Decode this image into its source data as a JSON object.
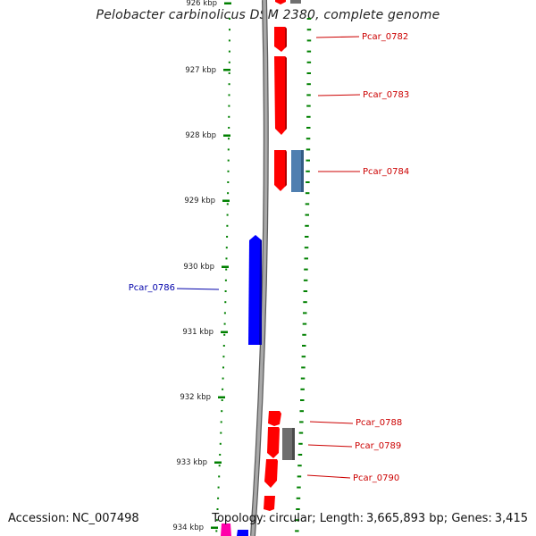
{
  "title": "Pelobacter carbinolicus DSM 2380, complete genome",
  "footer": {
    "accession_label": "Accession:",
    "accession": "NC_007498",
    "topology_label": "Topology:",
    "topology": "circular",
    "length_label": "Length:",
    "length": "3,665,893 bp",
    "genes_label": "Genes:",
    "genes": "3,415"
  },
  "colors": {
    "forward_gene": "#ff0000",
    "reverse_gene": "#0000ff",
    "other_feature_grey": "#808080",
    "other_feature_steelblue": "#4f7fb0",
    "other_feature_magenta": "#ff00aa",
    "tick": "#008000",
    "forward_label": "#cc0000",
    "reverse_label": "#0000aa",
    "backbone": "#8f8f8f"
  },
  "scale_ticks": [
    "926 kbp",
    "927 kbp",
    "928 kbp",
    "929 kbp",
    "930 kbp",
    "931 kbp",
    "932 kbp",
    "933 kbp",
    "934 kbp"
  ],
  "gene_labels": [
    "Pcar_0782",
    "Pcar_0783",
    "Pcar_0784",
    "Pcar_0786",
    "Pcar_0788",
    "Pcar_0789",
    "Pcar_0790"
  ]
}
